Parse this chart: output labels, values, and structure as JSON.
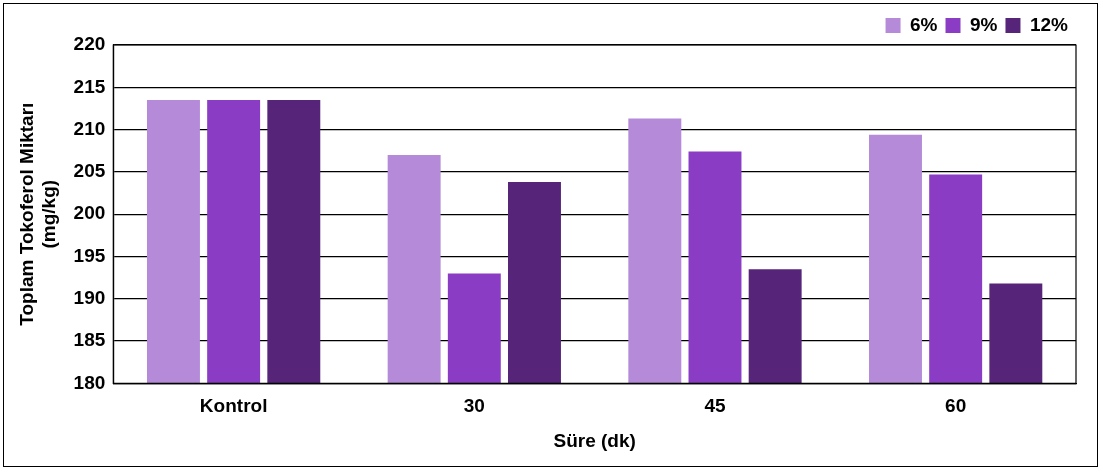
{
  "chart_data": {
    "type": "bar",
    "xlabel": "Süre (dk)",
    "ylabel": "Toplam Tokoferol Miktarı (mg/kg)",
    "categories": [
      "Kontrol",
      "30",
      "45",
      "60"
    ],
    "series": [
      {
        "name": "6%",
        "color": "#b48ad9",
        "values": [
          213.5,
          207.0,
          211.3,
          209.4
        ]
      },
      {
        "name": "9%",
        "color": "#8a3dc4",
        "values": [
          213.5,
          193.0,
          207.4,
          204.7
        ]
      },
      {
        "name": "12%",
        "color": "#56257a",
        "values": [
          213.5,
          203.8,
          193.5,
          191.8
        ]
      }
    ],
    "ylim": [
      180,
      220
    ],
    "yticks": [
      180,
      185,
      190,
      195,
      200,
      205,
      210,
      215,
      220
    ],
    "grid": "y",
    "legend": "top right"
  }
}
